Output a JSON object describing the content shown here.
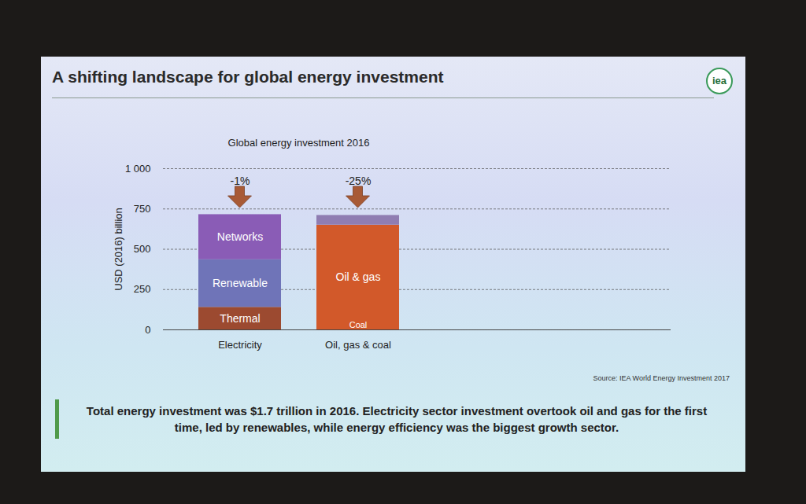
{
  "slide": {
    "title": "A shifting landscape for global energy investment",
    "logo": "iea",
    "source": "Source: IEA World Energy Investment 2017",
    "caption": "Total energy investment was $1.7 trillion in 2016. Electricity sector investment overtook oil and gas for the first time, led by renewables, while energy efficiency was the biggest growth sector."
  },
  "chart_data": {
    "type": "bar",
    "stacked": true,
    "title": "Global energy investment 2016",
    "y_label": "USD (2016) billion",
    "categories": [
      "Electricity",
      "Oil, gas & coal"
    ],
    "series": [
      {
        "name": "Thermal",
        "color": "#9c4a30",
        "values": [
          140,
          null
        ]
      },
      {
        "name": "Renewable",
        "color": "#6f74b8",
        "values": [
          295,
          null
        ]
      },
      {
        "name": "Networks",
        "color": "#8a5cb6",
        "values": [
          280,
          null
        ]
      },
      {
        "name": "Oil & gas",
        "color": "#d2592a",
        "values": [
          null,
          650
        ]
      },
      {
        "name": "Coal",
        "color": "#8f7db2",
        "values": [
          null,
          60
        ]
      }
    ],
    "ylim": [
      0,
      1000
    ],
    "yticks": [
      0,
      250,
      500,
      750,
      {
        "value": 1000,
        "label": "1 000"
      }
    ],
    "grid": true,
    "annotations": [
      {
        "category": "Electricity",
        "text": "-1%"
      },
      {
        "category": "Oil, gas & coal",
        "text": "-25%"
      }
    ]
  }
}
